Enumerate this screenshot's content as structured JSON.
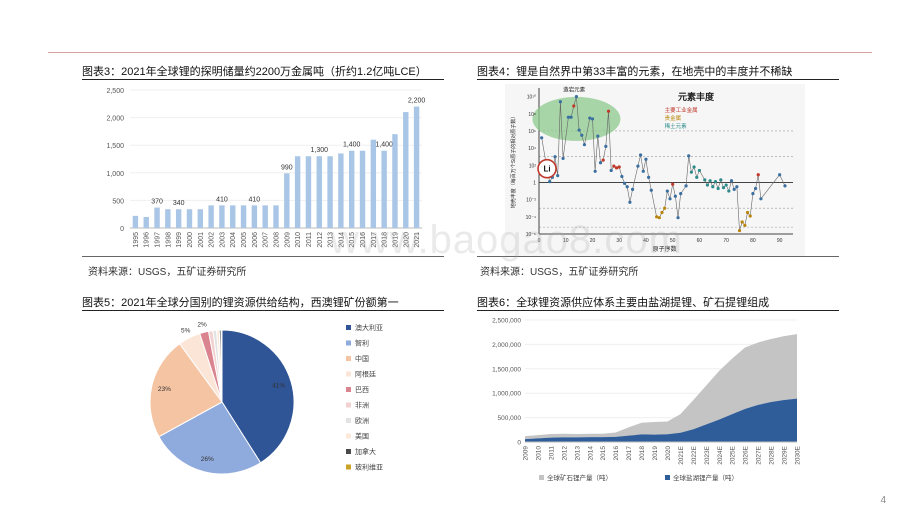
{
  "page_number": "4",
  "watermark": "www.baogao8.com",
  "colors": {
    "bar": "#a9c6e6",
    "ore": "#c4c4c4",
    "brine": "#2f5d9a"
  },
  "chart_data": [
    {
      "id": "c1",
      "type": "bar",
      "title": "图表3：2021年全球锂的探明储量约2200万金属吨（折约1.2亿吨LCE）",
      "source": "资料来源：USGS，五矿证券研究所",
      "categories": [
        "1995",
        "1996",
        "1997",
        "1998",
        "1999",
        "2000",
        "2001",
        "2002",
        "2003",
        "2004",
        "2005",
        "2006",
        "2007",
        "2008",
        "2009",
        "2010",
        "2011",
        "2012",
        "2013",
        "2014",
        "2015",
        "2016",
        "2017",
        "2018",
        "2019",
        "2020",
        "2021"
      ],
      "values": [
        220,
        200,
        370,
        340,
        340,
        340,
        340,
        410,
        410,
        410,
        410,
        410,
        410,
        410,
        990,
        1300,
        1300,
        1300,
        1300,
        1350,
        1400,
        1400,
        1600,
        1400,
        1700,
        2100,
        2200
      ],
      "data_labels": [
        null,
        null,
        "370",
        null,
        "340",
        null,
        null,
        null,
        "410",
        null,
        null,
        "410",
        null,
        null,
        "990",
        null,
        null,
        "1,300",
        null,
        null,
        "1,400",
        null,
        null,
        "1,400",
        null,
        null,
        "2,200"
      ],
      "ylim": [
        0,
        2500
      ],
      "yticks": [
        "0",
        "500",
        "1,000",
        "1,500",
        "2,000",
        "2,500"
      ]
    },
    {
      "id": "c2",
      "type": "scatter",
      "title": "图表4：锂是自然界中第33丰富的元素，在地壳中的丰度并不稀缺",
      "source": "资料来源：USGS，五矿证券研究所",
      "inner_title": "元素丰度",
      "xlabel": "原子序数",
      "ylabel": "地壳丰度（每百万个Si原子的相对原子数）",
      "legend": [
        "主要工业金属",
        "贵金属",
        "稀土元素"
      ],
      "cluster_label": "造岩元素",
      "highlight": "Li",
      "xticks": [
        "0",
        "10",
        "20",
        "30",
        "40",
        "50",
        "60",
        "70",
        "80",
        "90"
      ],
      "yticks": [
        "10¹⁰",
        "10⁸",
        "10⁶",
        "10⁴",
        "10²",
        "1",
        "10⁻²",
        "10⁻⁴",
        "10⁻⁶"
      ],
      "x": [
        1,
        3,
        4,
        5,
        6,
        7,
        8,
        9,
        11,
        12,
        13,
        14,
        15,
        16,
        17,
        19,
        20,
        21,
        22,
        23,
        24,
        25,
        26,
        27,
        28,
        29,
        30,
        31,
        32,
        33,
        34,
        35,
        37,
        38,
        39,
        40,
        41,
        42,
        44,
        45,
        46,
        47,
        48,
        49,
        50,
        51,
        52,
        53,
        55,
        56,
        57,
        58,
        59,
        60,
        62,
        63,
        64,
        65,
        66,
        67,
        68,
        69,
        70,
        71,
        72,
        73,
        74,
        75,
        76,
        77,
        78,
        79,
        80,
        81,
        82,
        83,
        90,
        92
      ],
      "y": [
        5.2,
        1.6,
        0.1,
        0.6,
        3,
        0.8,
        9.4,
        2.8,
        7.6,
        7.6,
        8.9,
        10,
        6.1,
        5.5,
        4.4,
        7.5,
        7.4,
        1.3,
        5.4,
        2.3,
        2.6,
        4.2,
        8.3,
        1.4,
        1.9,
        1.7,
        1.8,
        0.7,
        -0.1,
        -0.5,
        -2.3,
        -0.8,
        1.9,
        3.2,
        1.3,
        2.7,
        0.6,
        -0.9,
        -4,
        -4.1,
        -3.5,
        -3,
        -1,
        -1.9,
        -0.2,
        -1.6,
        -4.1,
        -1.3,
        -0.4,
        3.1,
        1.2,
        1.8,
        0.6,
        1.4,
        0.3,
        -0.3,
        0.2,
        -0.5,
        0.1,
        -0.7,
        0.3,
        -0.6,
        -0.3,
        -1,
        0.2,
        -0.8,
        -0.5,
        -5.6,
        -4.6,
        -5,
        -3.5,
        -3.9,
        -1.3,
        -0.7,
        0.9,
        -1.9,
        0.9,
        -0.4
      ],
      "xlim": [
        0,
        95
      ],
      "ylim": [
        -6,
        11
      ]
    },
    {
      "id": "c3",
      "type": "pie",
      "title": "图表5：2021年全球分国别的锂资源供给结构，西澳锂矿份额第一",
      "categories": [
        "澳大利亚",
        "智利",
        "中国",
        "阿根廷",
        "巴西",
        "非洲",
        "欧洲",
        "美国",
        "加拿大",
        "玻利维亚"
      ],
      "values": [
        41,
        26,
        23,
        5,
        2,
        1,
        0.8,
        0.6,
        0.4,
        0.2
      ],
      "data_labels": [
        "41%",
        "26%",
        "23%",
        "5%",
        "2%",
        null,
        null,
        null,
        null,
        null
      ],
      "colors": [
        "#2f5597",
        "#8faadc",
        "#f4c4a3",
        "#fbe5d6",
        "#d9848f",
        "#f2d1d1",
        "#e2e2e2",
        "#fde9d9",
        "#4a4a4a",
        "#c9a227"
      ]
    },
    {
      "id": "c4",
      "type": "area",
      "title": "图表6：全球锂资源供应体系主要由盐湖提锂、矿石提锂组成",
      "categories": [
        "2009",
        "2010",
        "2011",
        "2012",
        "2013",
        "2014",
        "2015",
        "2016",
        "2017",
        "2018",
        "2019",
        "2020",
        "2021E",
        "2022E",
        "2023E",
        "2024E",
        "2025E",
        "2026E",
        "2027E",
        "2028E",
        "2029E",
        "2030E"
      ],
      "series": [
        {
          "name": "全球盐湖锂产量（吨）",
          "values": [
            60000,
            75000,
            90000,
            95000,
            95000,
            100000,
            100000,
            105000,
            130000,
            155000,
            150000,
            160000,
            190000,
            260000,
            360000,
            460000,
            570000,
            680000,
            760000,
            820000,
            860000,
            890000
          ]
        },
        {
          "name": "全球矿石锂产量（吨）",
          "values": [
            60000,
            65000,
            75000,
            75000,
            70000,
            70000,
            70000,
            90000,
            170000,
            240000,
            260000,
            260000,
            380000,
            600000,
            800000,
            1000000,
            1140000,
            1260000,
            1280000,
            1290000,
            1310000,
            1320000
          ]
        }
      ],
      "legend": [
        "全球矿石锂产量（吨）",
        "全球盐湖锂产量（吨）"
      ],
      "ylim": [
        0,
        2500000
      ],
      "yticks": [
        "0",
        "500,000",
        "1,000,000",
        "1,500,000",
        "2,000,000",
        "2,500,000"
      ]
    }
  ]
}
